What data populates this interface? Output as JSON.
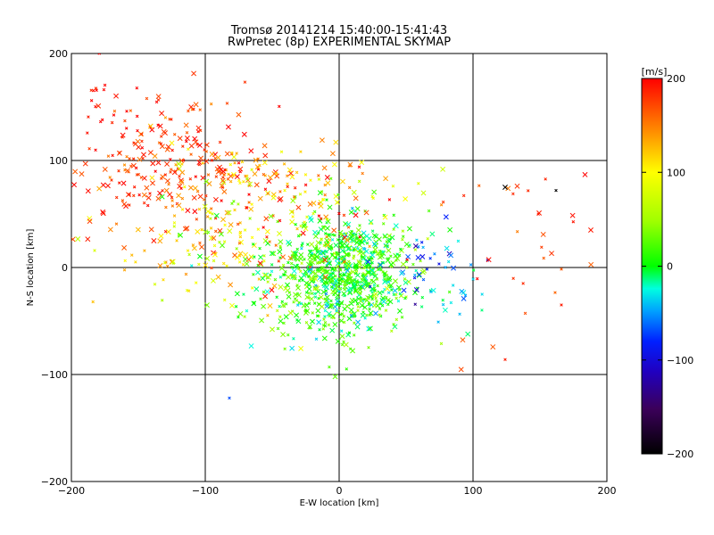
{
  "chart_data": {
    "type": "scatter",
    "title": "Tromsø 20141214 15:40:00-15:41:43",
    "subtitle": "RwPretec (8p) EXPERIMENTAL SKYMAP",
    "xlabel": "E-W location [km]",
    "ylabel": "N-S location [km]",
    "xlim": [
      -200,
      200
    ],
    "ylim": [
      -200,
      200
    ],
    "x_ticks": [
      -200,
      -100,
      0,
      100,
      200
    ],
    "y_ticks": [
      -200,
      -100,
      0,
      100,
      200
    ],
    "x_tick_labels": [
      "−200",
      "−100",
      "0",
      "100",
      "200"
    ],
    "y_tick_labels": [
      "−200",
      "−100",
      "0",
      "100",
      "200"
    ],
    "grid_lines_x": [
      -100,
      0,
      100
    ],
    "grid_lines_y": [
      -100,
      0,
      100
    ],
    "colorbar": {
      "unit_label": "[m/s]",
      "range": [
        -200,
        200
      ],
      "ticks": [
        200,
        100,
        0,
        -100,
        -200
      ],
      "tick_labels": [
        "200",
        "100",
        "0",
        "−100",
        "−200"
      ],
      "colormap": "rainbow: black(-200) → purple → blue → cyan → green(0) → yellow → orange → red(200)"
    },
    "clusters": [
      {
        "region": "north-west",
        "center": [
          -130,
          100
        ],
        "spread": [
          35,
          35
        ],
        "count": 220,
        "v_mean": 180,
        "v_spread": 20
      },
      {
        "region": "upper-west-band",
        "center": [
          -70,
          85
        ],
        "spread": [
          30,
          15
        ],
        "count": 90,
        "v_mean": 150,
        "v_spread": 40
      },
      {
        "region": "far-north-west",
        "center": [
          -175,
          155
        ],
        "spread": [
          10,
          15
        ],
        "count": 14,
        "v_mean": 190,
        "v_spread": 10
      },
      {
        "region": "central-origin",
        "center": [
          5,
          0
        ],
        "spread": [
          25,
          22
        ],
        "count": 650,
        "v_mean": 10,
        "v_spread": 25
      },
      {
        "region": "central-south",
        "center": [
          -10,
          -35
        ],
        "spread": [
          30,
          20
        ],
        "count": 180,
        "v_mean": 20,
        "v_spread": 25
      },
      {
        "region": "west-mid",
        "center": [
          -90,
          20
        ],
        "spread": [
          35,
          30
        ],
        "count": 150,
        "v_mean": 110,
        "v_spread": 50
      },
      {
        "region": "north-center",
        "center": [
          -10,
          60
        ],
        "spread": [
          30,
          25
        ],
        "count": 90,
        "v_mean": 120,
        "v_spread": 50
      },
      {
        "region": "east-blue",
        "center": [
          65,
          0
        ],
        "spread": [
          20,
          15
        ],
        "count": 40,
        "v_mean": -70,
        "v_spread": 30
      },
      {
        "region": "east-cyan",
        "center": [
          90,
          -30
        ],
        "spread": [
          15,
          12
        ],
        "count": 15,
        "v_mean": -30,
        "v_spread": 15
      },
      {
        "region": "east-scattered-red",
        "center": [
          140,
          30
        ],
        "spread": [
          35,
          50
        ],
        "count": 30,
        "v_mean": 175,
        "v_spread": 20
      }
    ],
    "outliers": [
      {
        "x": -82,
        "y": -122,
        "v": -70
      },
      {
        "x": -3,
        "y": -102,
        "v": 30
      },
      {
        "x": 124,
        "y": -86,
        "v": 190
      },
      {
        "x": 166,
        "y": -35,
        "v": 190
      },
      {
        "x": 124,
        "y": 75,
        "v": -200
      },
      {
        "x": 162,
        "y": 72,
        "v": -200
      },
      {
        "x": 133,
        "y": 76,
        "v": 180
      },
      {
        "x": 188,
        "y": 35,
        "v": 190
      }
    ]
  }
}
